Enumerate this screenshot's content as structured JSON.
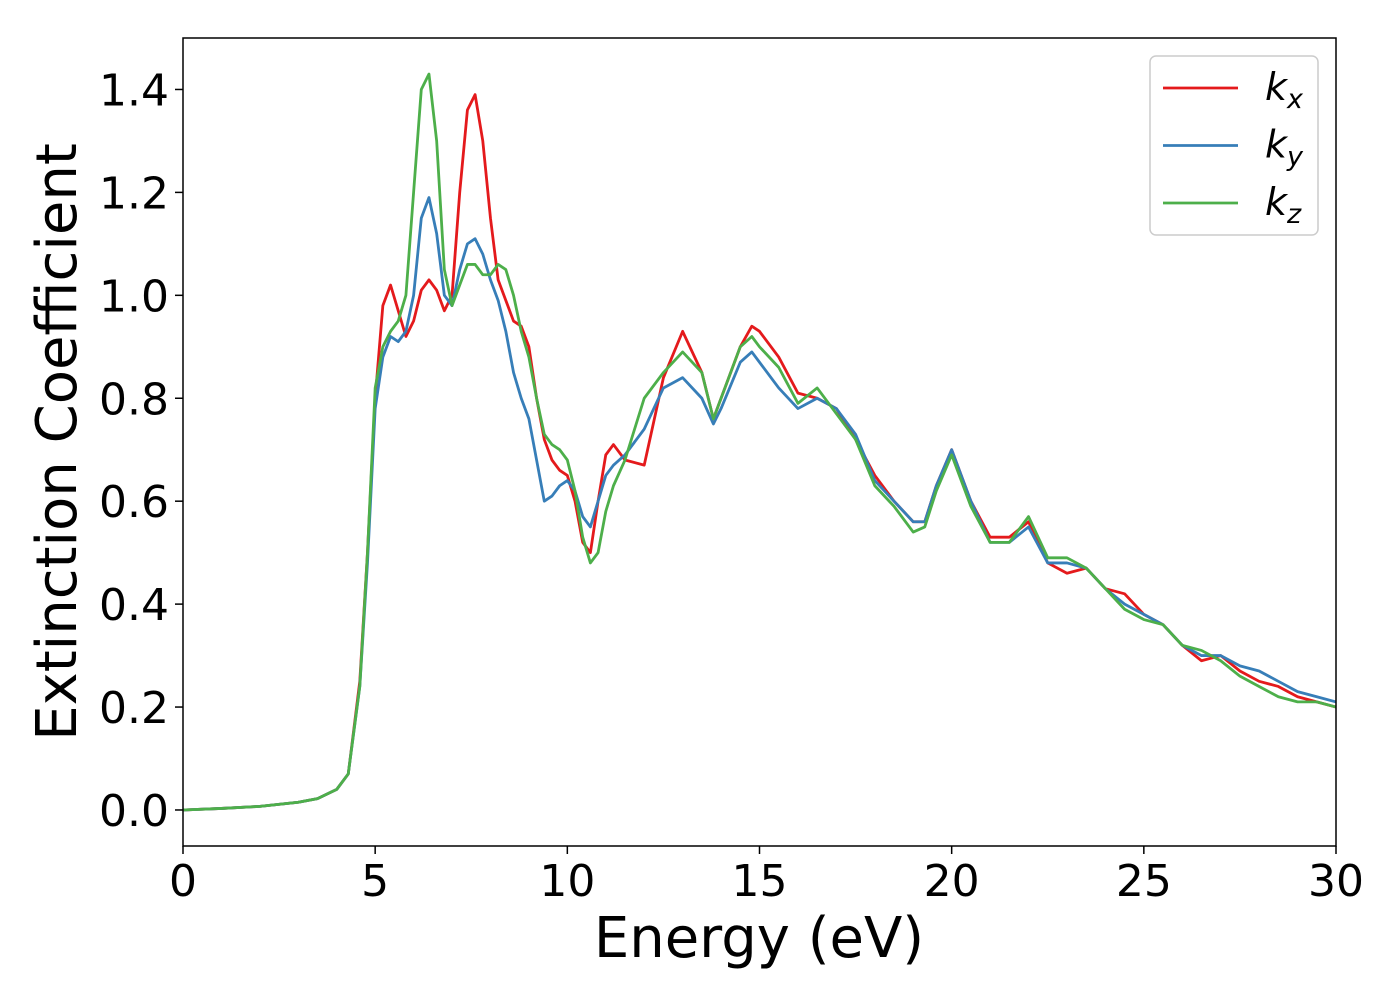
{
  "chart_data": {
    "type": "line",
    "xlabel": "Energy (eV)",
    "ylabel": "Extinction Coefficient",
    "x": [
      0,
      1,
      2,
      3,
      3.5,
      4,
      4.3,
      4.6,
      4.8,
      5,
      5.2,
      5.4,
      5.6,
      5.8,
      6,
      6.2,
      6.4,
      6.6,
      6.8,
      7,
      7.2,
      7.4,
      7.6,
      7.8,
      8,
      8.2,
      8.4,
      8.6,
      8.8,
      9,
      9.2,
      9.4,
      9.6,
      9.8,
      10,
      10.2,
      10.4,
      10.6,
      10.8,
      11,
      11.2,
      11.5,
      12,
      12.5,
      13,
      13.5,
      13.8,
      14,
      14.5,
      14.8,
      15,
      15.5,
      16,
      16.5,
      17,
      17.5,
      18,
      18.5,
      19,
      19.3,
      19.6,
      20,
      20.5,
      21,
      21.5,
      22,
      22.5,
      23,
      23.5,
      24,
      24.5,
      25,
      25.5,
      26,
      26.5,
      27,
      27.5,
      28,
      28.5,
      29,
      29.5,
      30
    ],
    "series": [
      {
        "name": "kx",
        "color": "#e41a1c",
        "values": [
          0,
          0.003,
          0.007,
          0.015,
          0.022,
          0.04,
          0.07,
          0.25,
          0.5,
          0.8,
          0.98,
          1.02,
          0.97,
          0.92,
          0.95,
          1.01,
          1.03,
          1.01,
          0.97,
          1.0,
          1.2,
          1.36,
          1.39,
          1.3,
          1.15,
          1.03,
          0.99,
          0.95,
          0.94,
          0.9,
          0.8,
          0.72,
          0.68,
          0.66,
          0.65,
          0.6,
          0.52,
          0.5,
          0.6,
          0.69,
          0.71,
          0.68,
          0.67,
          0.84,
          0.93,
          0.85,
          0.76,
          0.8,
          0.9,
          0.94,
          0.93,
          0.88,
          0.81,
          0.8,
          0.78,
          0.72,
          0.65,
          0.6,
          0.56,
          0.56,
          0.63,
          0.7,
          0.6,
          0.53,
          0.53,
          0.56,
          0.48,
          0.46,
          0.47,
          0.43,
          0.42,
          0.38,
          0.36,
          0.32,
          0.29,
          0.3,
          0.27,
          0.25,
          0.24,
          0.22,
          0.21,
          0.2
        ]
      },
      {
        "name": "ky",
        "color": "#377eb8",
        "values": [
          0,
          0.003,
          0.007,
          0.015,
          0.022,
          0.04,
          0.07,
          0.24,
          0.48,
          0.78,
          0.88,
          0.92,
          0.91,
          0.93,
          1.0,
          1.15,
          1.19,
          1.12,
          1.0,
          0.98,
          1.05,
          1.1,
          1.11,
          1.08,
          1.03,
          0.99,
          0.93,
          0.85,
          0.8,
          0.76,
          0.68,
          0.6,
          0.61,
          0.63,
          0.64,
          0.62,
          0.57,
          0.55,
          0.6,
          0.65,
          0.67,
          0.69,
          0.74,
          0.82,
          0.84,
          0.8,
          0.75,
          0.78,
          0.87,
          0.89,
          0.87,
          0.82,
          0.78,
          0.8,
          0.78,
          0.73,
          0.64,
          0.6,
          0.56,
          0.56,
          0.63,
          0.7,
          0.6,
          0.52,
          0.52,
          0.55,
          0.48,
          0.48,
          0.47,
          0.43,
          0.4,
          0.38,
          0.36,
          0.32,
          0.3,
          0.3,
          0.28,
          0.27,
          0.25,
          0.23,
          0.22,
          0.21
        ]
      },
      {
        "name": "kz",
        "color": "#4daf4a",
        "values": [
          0,
          0.003,
          0.007,
          0.015,
          0.022,
          0.04,
          0.07,
          0.24,
          0.5,
          0.82,
          0.9,
          0.93,
          0.95,
          1.0,
          1.2,
          1.4,
          1.43,
          1.3,
          1.05,
          0.98,
          1.02,
          1.06,
          1.06,
          1.04,
          1.04,
          1.06,
          1.05,
          1.0,
          0.93,
          0.88,
          0.8,
          0.73,
          0.71,
          0.7,
          0.68,
          0.62,
          0.53,
          0.48,
          0.5,
          0.58,
          0.63,
          0.68,
          0.8,
          0.85,
          0.89,
          0.85,
          0.76,
          0.8,
          0.9,
          0.92,
          0.9,
          0.86,
          0.79,
          0.82,
          0.77,
          0.72,
          0.63,
          0.59,
          0.54,
          0.55,
          0.62,
          0.69,
          0.59,
          0.52,
          0.52,
          0.57,
          0.49,
          0.49,
          0.47,
          0.43,
          0.39,
          0.37,
          0.36,
          0.32,
          0.31,
          0.29,
          0.26,
          0.24,
          0.22,
          0.21,
          0.21,
          0.2
        ]
      }
    ],
    "xlim": [
      0,
      30
    ],
    "xticks": [
      0,
      5,
      10,
      15,
      20,
      25,
      30
    ],
    "ylim": [
      -0.07,
      1.5
    ],
    "yticks": [
      {
        "value": 0,
        "label": "0.0"
      },
      {
        "value": 0.2,
        "label": "0.2"
      },
      {
        "value": 0.4,
        "label": "0.4"
      },
      {
        "value": 0.6,
        "label": "0.6"
      },
      {
        "value": 0.8,
        "label": "0.8"
      },
      {
        "value": 1.0,
        "label": "1.0"
      },
      {
        "value": 1.2,
        "label": "1.2"
      },
      {
        "value": 1.4,
        "label": "1.4"
      }
    ],
    "legend": "upper right",
    "grid": false
  }
}
